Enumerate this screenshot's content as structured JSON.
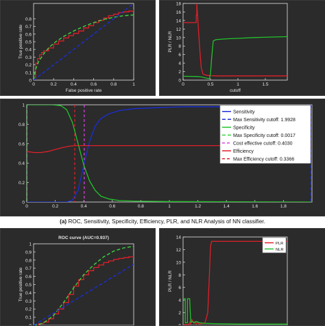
{
  "caption": {
    "label": "(a)",
    "text": "ROC, Sensitivity, Specificity, Efficiency, PLR, and NLR Analysis of NN classifier."
  },
  "colors": {
    "red": "#e0202a",
    "green": "#22c32a",
    "green_dash": "#3bd641",
    "blue": "#1a2ed8",
    "magenta": "#e040e8",
    "axis": "#e8e8e8"
  },
  "chart_data": [
    {
      "id": "roc_top",
      "type": "line",
      "title": "",
      "xlabel": "False positive rate",
      "ylabel": "True positive rate",
      "xlim": [
        0,
        1
      ],
      "ylim": [
        0,
        1
      ],
      "xticks": [
        "0",
        "0.2",
        "0.4",
        "0.6",
        "0.8",
        "1"
      ],
      "yticks": [
        "0",
        "0.1",
        "0.2",
        "0.3",
        "0.4",
        "0.5",
        "0.6",
        "0.7",
        "0.8"
      ],
      "series": [
        {
          "style": "red-step",
          "x": [
            0,
            0.02,
            0.04,
            0.06,
            0.08,
            0.1,
            0.15,
            0.2,
            0.25,
            0.3,
            0.35,
            0.4,
            0.45,
            0.5,
            0.55,
            0.6,
            0.65,
            0.7,
            0.75,
            0.8,
            0.85,
            0.9,
            0.95,
            1.0
          ],
          "y": [
            0,
            0.22,
            0.28,
            0.33,
            0.36,
            0.38,
            0.42,
            0.47,
            0.51,
            0.55,
            0.58,
            0.61,
            0.64,
            0.68,
            0.71,
            0.75,
            0.78,
            0.81,
            0.84,
            0.86,
            0.88,
            0.89,
            0.9,
            0.92
          ]
        },
        {
          "style": "green-dash",
          "x": [
            0,
            0.02,
            0.05,
            0.1,
            0.15,
            0.2,
            0.3,
            0.4,
            0.5,
            0.6,
            0.7,
            0.8,
            0.9,
            1.0
          ],
          "y": [
            0,
            0.14,
            0.24,
            0.34,
            0.42,
            0.48,
            0.57,
            0.64,
            0.7,
            0.75,
            0.79,
            0.82,
            0.84,
            0.85
          ]
        },
        {
          "style": "blue-dash",
          "x": [
            0,
            1
          ],
          "y": [
            0,
            1
          ]
        }
      ]
    },
    {
      "id": "plr_nlr_top",
      "type": "line",
      "title": "",
      "xlabel": "cutoff",
      "ylabel": "PLR / NLR",
      "xlim": [
        0,
        1.9
      ],
      "ylim": [
        0,
        18
      ],
      "xticks": [
        "0",
        "0.5",
        "1",
        "1.5"
      ],
      "yticks": [
        "0",
        "2",
        "4",
        "6",
        "8",
        "10",
        "12",
        "14",
        "16",
        "18"
      ],
      "series": [
        {
          "style": "red",
          "x": [
            0,
            0.24,
            0.24,
            0.25,
            0.25,
            0.27,
            0.3,
            0.33,
            0.36,
            0.4,
            0.45,
            0.5,
            0.6,
            1.9
          ],
          "y": [
            13.5,
            13.5,
            15.2,
            15.2,
            18,
            14,
            8,
            3,
            1.5,
            1.2,
            1.1,
            1.05,
            1.0,
            1.0
          ]
        },
        {
          "style": "green",
          "x": [
            0,
            0.25,
            0.3,
            0.35,
            0.4,
            0.45,
            0.48,
            0.5,
            0.52,
            0.55,
            0.6,
            0.8,
            1.0,
            1.3,
            1.9
          ],
          "y": [
            0.9,
            0.85,
            0.8,
            0.7,
            0.55,
            0.4,
            0.35,
            1.5,
            5.0,
            9.2,
            9.5,
            9.7,
            9.8,
            10.0,
            10.2
          ]
        }
      ]
    },
    {
      "id": "sens_spec_eff",
      "type": "line",
      "title": "",
      "xlim": [
        0,
        2.0
      ],
      "ylim": [
        0,
        1
      ],
      "xticks": [
        "0",
        "0.2",
        "0.4",
        "0.6",
        "0.8",
        "1",
        "1.2",
        "1.4",
        "1.6",
        "1.8"
      ],
      "yticks": [
        "0",
        "0.2",
        "0.4",
        "0.6",
        "0.8",
        "1"
      ],
      "legend_position": "top-right",
      "legend": [
        {
          "label": "Sensitivity",
          "style": "blue"
        },
        {
          "label": "Max Sensitivity cutoff: 1.9928",
          "style": "blue-dash"
        },
        {
          "label": "Specificity",
          "style": "green"
        },
        {
          "label": "Max Specificity cutoff: 0.0017",
          "style": "green-dash"
        },
        {
          "label": "Cost effective cutoff: 0.4030",
          "style": "magenta-dash"
        },
        {
          "label": "Efficiency",
          "style": "red"
        },
        {
          "label": "Max Efficiency cutoff: 0.3366",
          "style": "red-dash"
        }
      ],
      "series": [
        {
          "name": "Sensitivity",
          "style": "blue",
          "x": [
            0,
            0.28,
            0.32,
            0.36,
            0.4,
            0.44,
            0.48,
            0.52,
            0.58,
            0.65,
            0.75,
            0.9,
            1.1,
            1.4,
            2.0
          ],
          "y": [
            0,
            0.0,
            0.02,
            0.12,
            0.38,
            0.62,
            0.78,
            0.86,
            0.91,
            0.94,
            0.96,
            0.97,
            0.98,
            0.98,
            0.98
          ]
        },
        {
          "name": "Specificity",
          "style": "green",
          "x": [
            0,
            0.18,
            0.24,
            0.28,
            0.32,
            0.36,
            0.4,
            0.44,
            0.48,
            0.52,
            0.58,
            0.65,
            0.75,
            1.0,
            2.0
          ],
          "y": [
            1.0,
            1.0,
            0.99,
            0.95,
            0.82,
            0.6,
            0.38,
            0.22,
            0.12,
            0.06,
            0.03,
            0.015,
            0.01,
            0.005,
            0.0
          ]
        },
        {
          "name": "Efficiency",
          "style": "red",
          "x": [
            0,
            0.05,
            0.1,
            0.15,
            0.2,
            0.25,
            0.3,
            0.34,
            0.4,
            0.6,
            1.0,
            2.0
          ],
          "y": [
            0.52,
            0.51,
            0.51,
            0.52,
            0.54,
            0.56,
            0.575,
            0.58,
            0.58,
            0.58,
            0.58,
            0.58
          ]
        }
      ],
      "vlines": [
        {
          "x": 1.9928,
          "style": "blue-dash"
        },
        {
          "x": 0.0017,
          "style": "green-dash"
        },
        {
          "x": 0.403,
          "style": "magenta-dash"
        },
        {
          "x": 0.3366,
          "style": "red-dash"
        }
      ]
    },
    {
      "id": "roc_bottom",
      "type": "line",
      "title": "ROC curve (AUC=0.937)",
      "xlabel": "",
      "ylabel": "True positive rate",
      "xlim": [
        0,
        1
      ],
      "ylim": [
        0,
        1
      ],
      "yticks": [
        "0",
        "0.1",
        "0.2",
        "0.3",
        "0.4",
        "0.5",
        "0.6",
        "0.7",
        "0.8",
        "0.9",
        "1"
      ],
      "series": [
        {
          "style": "red-step",
          "x": [
            0,
            0.05,
            0.1,
            0.15,
            0.2,
            0.25,
            0.3,
            0.35,
            0.4,
            0.45,
            0.5,
            0.55,
            0.6,
            0.65,
            0.7,
            0.75,
            0.8,
            0.85,
            0.9,
            0.95,
            1.0
          ],
          "y": [
            0,
            0.02,
            0.04,
            0.08,
            0.14,
            0.2,
            0.28,
            0.38,
            0.48,
            0.56,
            0.62,
            0.67,
            0.71,
            0.74,
            0.77,
            0.79,
            0.81,
            0.82,
            0.83,
            0.84,
            0.85
          ]
        },
        {
          "style": "green-dash",
          "x": [
            0,
            0.05,
            0.1,
            0.2,
            0.3,
            0.4,
            0.5,
            0.6,
            0.7,
            0.8,
            0.9,
            1.0
          ],
          "y": [
            0,
            0.01,
            0.03,
            0.12,
            0.28,
            0.46,
            0.62,
            0.74,
            0.84,
            0.91,
            0.95,
            0.97
          ]
        },
        {
          "style": "blue-dash",
          "x": [
            0,
            1
          ],
          "y": [
            0,
            0.75
          ]
        }
      ]
    },
    {
      "id": "plr_nlr_bottom",
      "type": "line",
      "title": "",
      "xlabel": "",
      "ylabel": "PLR / NLR",
      "xlim": [
        0,
        1.9
      ],
      "ylim": [
        0,
        14
      ],
      "yticks": [
        "0",
        "2",
        "4",
        "6",
        "8",
        "10",
        "12",
        "14"
      ],
      "legend_position": "top-right",
      "legend": [
        {
          "label": "PLR",
          "style": "red"
        },
        {
          "label": "NLR",
          "style": "green"
        }
      ],
      "series": [
        {
          "name": "PLR",
          "style": "red",
          "x": [
            0,
            0.1,
            0.12,
            0.14,
            0.16,
            0.2,
            0.22,
            0.24,
            0.26,
            0.3,
            0.35,
            0.4,
            0.45,
            0.48,
            0.5,
            0.52,
            1.0,
            1.9
          ],
          "y": [
            0.1,
            0.1,
            0.5,
            0.2,
            0.9,
            0.3,
            0.6,
            0.2,
            0.4,
            0.2,
            0.3,
            0.4,
            2.0,
            8.0,
            12.5,
            13.3,
            13.3,
            13.3
          ]
        },
        {
          "name": "NLR",
          "style": "green",
          "x": [
            0,
            0.04,
            0.04,
            0.08,
            0.08,
            0.12,
            0.14,
            0.18,
            0.2,
            0.24,
            0.28,
            0.3,
            0.4,
            0.6,
            1.0,
            1.9
          ],
          "y": [
            4.2,
            4.2,
            0.4,
            0.4,
            4.2,
            4.2,
            0.5,
            0.6,
            0.4,
            0.6,
            0.5,
            0.4,
            0.3,
            0.25,
            0.2,
            0.2
          ]
        }
      ]
    }
  ]
}
